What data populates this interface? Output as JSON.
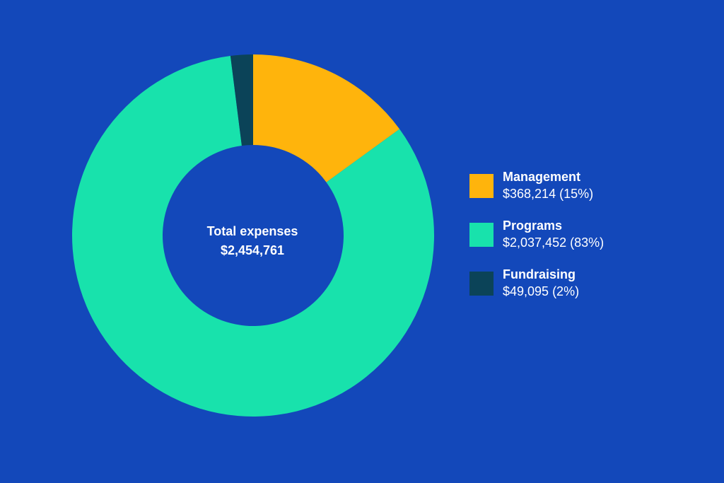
{
  "chart_data": {
    "type": "pie",
    "title": "",
    "center_label": {
      "line1": "Total expenses",
      "line2": "$2,454,761"
    },
    "categories": [
      "Management",
      "Programs",
      "Fundraising"
    ],
    "values": [
      368214,
      2037452,
      49095
    ],
    "value_labels": [
      "$368,214 (15%)",
      "$2,037,452 (83%)",
      "$49,095 (2%)"
    ],
    "colors": [
      "#FFB40C",
      "#18E2AC",
      "#0B4358"
    ],
    "legend_position": "right"
  },
  "colors": {
    "background": "#1348BA",
    "text": "#FFFFFF"
  }
}
